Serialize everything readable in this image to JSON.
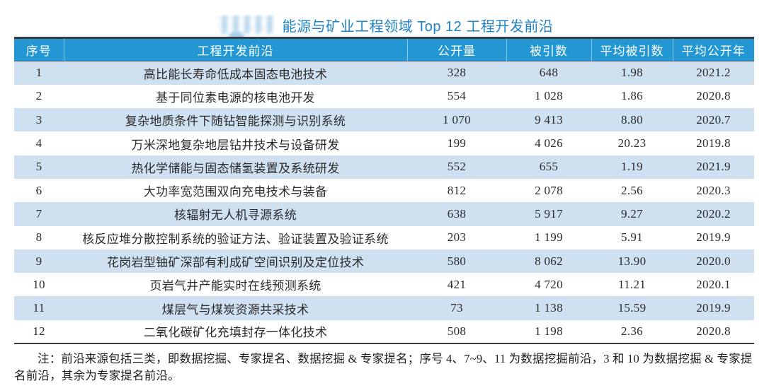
{
  "page": {
    "title": "能源与矿业工程领域 Top 12 工程开发前沿",
    "note": "注：前沿来源包括三类，即数据挖掘、专家提名、数据挖掘 & 专家提名；序号 4、7~9、11 为数据挖掘前沿，3 和 10 为数据挖掘 & 专家提名前沿，其余为专家提名前沿。"
  },
  "table": {
    "headers": [
      "序号",
      "工程开发前沿",
      "公开量",
      "被引数",
      "平均被引数",
      "平均公开年"
    ],
    "rows": [
      {
        "no": "1",
        "name": "高比能长寿命低成本固态电池技术",
        "pub": "328",
        "cited": "648",
        "avg_cited": "1.98",
        "avg_year": "2021.2"
      },
      {
        "no": "2",
        "name": "基于同位素电源的核电池开发",
        "pub": "554",
        "cited": "1 028",
        "avg_cited": "1.86",
        "avg_year": "2020.8"
      },
      {
        "no": "3",
        "name": "复杂地质条件下随钻智能探测与识别系统",
        "pub": "1 070",
        "cited": "9 413",
        "avg_cited": "8.80",
        "avg_year": "2020.7"
      },
      {
        "no": "4",
        "name": "万米深地复杂地层钻井技术与设备研发",
        "pub": "199",
        "cited": "4 026",
        "avg_cited": "20.23",
        "avg_year": "2019.8"
      },
      {
        "no": "5",
        "name": "热化学储能与固态储氢装置及系统研发",
        "pub": "552",
        "cited": "655",
        "avg_cited": "1.19",
        "avg_year": "2021.9"
      },
      {
        "no": "6",
        "name": "大功率宽范围双向充电技术与装备",
        "pub": "812",
        "cited": "2 078",
        "avg_cited": "2.56",
        "avg_year": "2020.3"
      },
      {
        "no": "7",
        "name": "核辐射无人机寻源系统",
        "pub": "638",
        "cited": "5 917",
        "avg_cited": "9.27",
        "avg_year": "2020.2"
      },
      {
        "no": "8",
        "name": "核反应堆分散控制系统的验证方法、验证装置及验证系统",
        "pub": "203",
        "cited": "1 199",
        "avg_cited": "5.91",
        "avg_year": "2019.9"
      },
      {
        "no": "9",
        "name": "花岗岩型铀矿深部有利成矿空间识别及定位技术",
        "pub": "580",
        "cited": "8 062",
        "avg_cited": "13.90",
        "avg_year": "2020.0"
      },
      {
        "no": "10",
        "name": "页岩气井产能实时在线预测系统",
        "pub": "421",
        "cited": "4 720",
        "avg_cited": "11.21",
        "avg_year": "2020.1"
      },
      {
        "no": "11",
        "name": "煤层气与煤炭资源共采技术",
        "pub": "73",
        "cited": "1 138",
        "avg_cited": "15.59",
        "avg_year": "2019.9"
      },
      {
        "no": "12",
        "name": "二氧化碳矿化充填封存一体化技术",
        "pub": "508",
        "cited": "1 198",
        "avg_cited": "2.36",
        "avg_year": "2020.8"
      }
    ]
  },
  "colors": {
    "title_text": "#1E82C5",
    "header_bg": "#2397D3",
    "header_text": "#FFFFFF",
    "stripe_bg": "#CFE1F1",
    "body_text": "#2B2B2B",
    "border_dark": "#3C3C3C"
  }
}
